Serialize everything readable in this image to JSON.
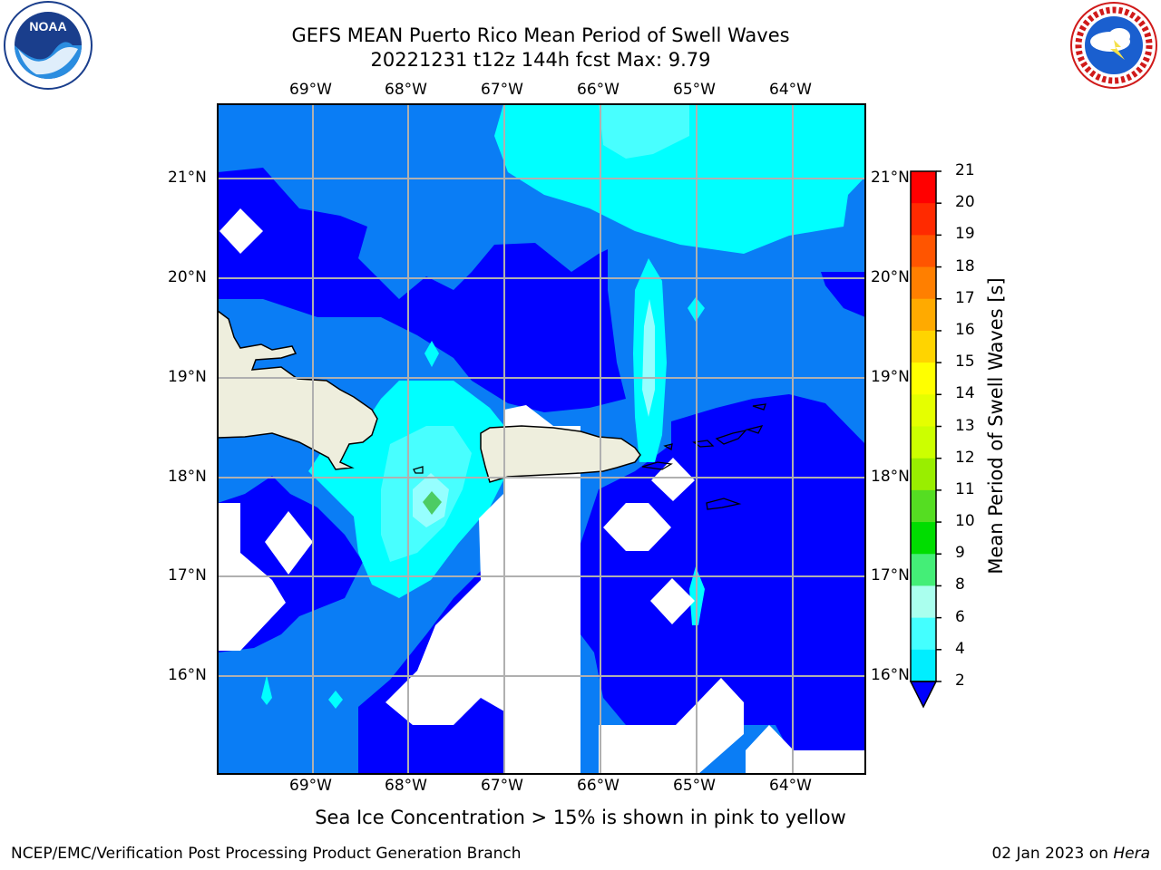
{
  "header": {
    "title_line1": "GEFS MEAN Puerto Rico Mean Period of Swell Waves",
    "title_line2": "20221231 t12z 144h fcst   Max: 9.79",
    "noaa_logo_text": "NOAA",
    "nws_logo_text": "NATIONAL WEATHER SERVICE"
  },
  "map": {
    "lon_labels": [
      "69°W",
      "68°W",
      "67°W",
      "66°W",
      "65°W",
      "64°W"
    ],
    "lat_labels": [
      "21°N",
      "20°N",
      "19°N",
      "18°N",
      "17°N",
      "16°N"
    ],
    "colors": {
      "land": "#eeeedd",
      "coast": "#000000",
      "grid": "#b0b0b0",
      "c2_4": "#0000ff",
      "c4_6": "#0a7df5",
      "c6_8": "#00ffff",
      "c8_9": "#48ffff",
      "c9_10": "#96ffff",
      "c10_11": "#4ccc64"
    }
  },
  "colorbar": {
    "title": "Mean Period of Swell Waves [s]",
    "labels": [
      "21",
      "20",
      "19",
      "18",
      "17",
      "16",
      "15",
      "14",
      "13",
      "12",
      "11",
      "10",
      "9",
      "8",
      "6",
      "4",
      "2"
    ],
    "colors": [
      "#ff0000",
      "#ff2a00",
      "#ff5500",
      "#ff7f00",
      "#ffaa00",
      "#ffd400",
      "#ffff00",
      "#e5ff00",
      "#ccff00",
      "#99ee00",
      "#55dd22",
      "#00dd00",
      "#44ee77",
      "#aaffee",
      "#44ffff",
      "#00eeff",
      "#0070ff"
    ],
    "extend_color": "#0000ff"
  },
  "chart_data": {
    "type": "heatmap",
    "title": "GEFS MEAN Puerto Rico Mean Period of Swell Waves",
    "subtitle": "20221231 t12z 144h fcst   Max: 9.79",
    "variable": "Mean Period of Swell Waves [s]",
    "max_value": 9.79,
    "lon_range": [
      -70,
      -63.3
    ],
    "lat_range": [
      15,
      21.75
    ],
    "levels": [
      2,
      4,
      6,
      8,
      9,
      10,
      11,
      12,
      13,
      14,
      15,
      16,
      17,
      18,
      19,
      20,
      21
    ]
  },
  "footer": {
    "note": "Sea Ice Concentration > 15% is shown in pink to yellow",
    "left": "NCEP/EMC/Verification Post Processing Product Generation Branch",
    "date": "02 Jan 2023 on ",
    "machine": "Hera"
  }
}
